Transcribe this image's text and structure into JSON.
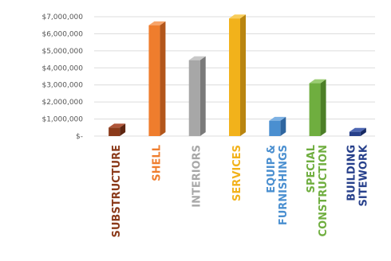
{
  "chart_data": {
    "type": "bar",
    "title": "",
    "xlabel": "",
    "ylabel": "",
    "ylim": [
      0,
      7000000
    ],
    "y_ticks": [
      {
        "value": 0,
        "label": "$-"
      },
      {
        "value": 1000000,
        "label": "$1,000,000"
      },
      {
        "value": 2000000,
        "label": "$2,000,000"
      },
      {
        "value": 3000000,
        "label": "$3,000,000"
      },
      {
        "value": 4000000,
        "label": "$4,000,000"
      },
      {
        "value": 5000000,
        "label": "$5,000,000"
      },
      {
        "value": 6000000,
        "label": "$6,000,000"
      },
      {
        "value": 7000000,
        "label": "$7,000,000"
      }
    ],
    "grid": true,
    "bar_style": "3d",
    "categories": [
      {
        "lines": [
          "SUBSTRUCTURE"
        ],
        "value": 500000,
        "color": "#8b3a1a",
        "side": "#5e2510",
        "top": "#b0563a"
      },
      {
        "lines": [
          "SHELL"
        ],
        "value": 6500000,
        "color": "#ef7d2d",
        "side": "#b3561b",
        "top": "#f7a46a"
      },
      {
        "lines": [
          "INTERIORS"
        ],
        "value": 4450000,
        "color": "#a7a7a7",
        "side": "#7a7a7a",
        "top": "#c8c8c8"
      },
      {
        "lines": [
          "SERVICES"
        ],
        "value": 6900000,
        "color": "#f2b21b",
        "side": "#b98510",
        "top": "#f8cd5c"
      },
      {
        "lines": [
          "EQUIP &",
          "FURNISHINGS"
        ],
        "value": 900000,
        "color": "#4a8fd0",
        "side": "#2f66a0",
        "top": "#7db1e3"
      },
      {
        "lines": [
          "SPECIAL",
          "CONSTRUCTION"
        ],
        "value": 3100000,
        "color": "#6fae3f",
        "side": "#4c7f27",
        "top": "#9bcd73"
      },
      {
        "lines": [
          "BUILDING",
          "SITEWORK"
        ],
        "value": 250000,
        "color": "#27408b",
        "side": "#172a63",
        "top": "#4e67b3"
      }
    ]
  }
}
